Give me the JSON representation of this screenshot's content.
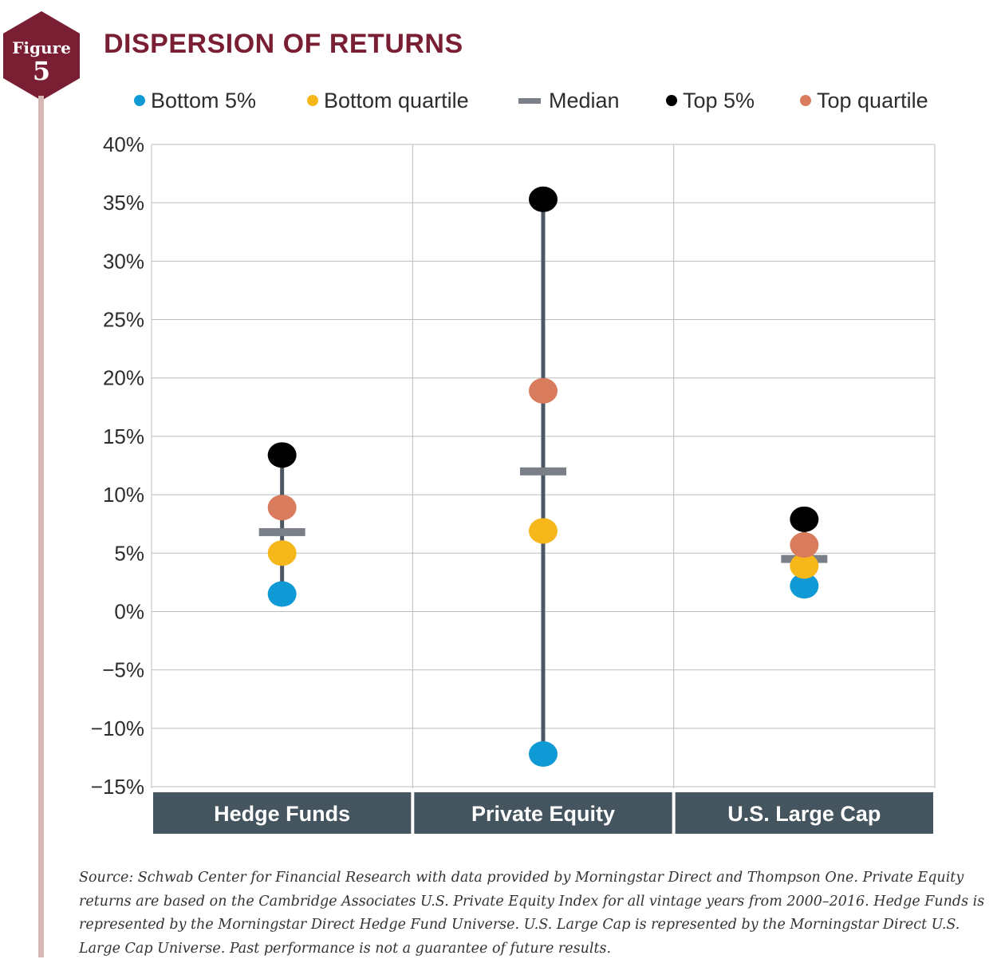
{
  "figure_badge": {
    "word": "Figure",
    "number": "5",
    "color": "#7a1f33"
  },
  "chart_data": {
    "type": "scatter",
    "title": "DISPERSION OF RETURNS",
    "xlabel": "",
    "ylabel": "",
    "categories": [
      "Hedge Funds",
      "Private Equity",
      "U.S. Large Cap"
    ],
    "ylim": [
      -15,
      40
    ],
    "yticks": [
      40,
      35,
      30,
      25,
      20,
      15,
      10,
      5,
      0,
      -5,
      -10,
      -15
    ],
    "ytick_labels": [
      "40%",
      "35%",
      "30%",
      "25%",
      "20%",
      "15%",
      "10%",
      "5%",
      "0%",
      "−5%",
      "−10%",
      "−15%"
    ],
    "grid": true,
    "legend_position": "top",
    "series": [
      {
        "name": "Bottom 5%",
        "marker": "dot",
        "color": "#0f9ad6",
        "values": [
          1.5,
          -12.2,
          2.2
        ]
      },
      {
        "name": "Bottom quartile",
        "marker": "dot",
        "color": "#f5b71a",
        "values": [
          5.0,
          6.9,
          3.9
        ]
      },
      {
        "name": "Median",
        "marker": "bar",
        "color": "#7b7f88",
        "values": [
          6.8,
          12.0,
          4.5
        ]
      },
      {
        "name": "Top 5%",
        "marker": "dot",
        "color": "#000000",
        "values": [
          13.4,
          35.3,
          7.9
        ]
      },
      {
        "name": "Top quartile",
        "marker": "dot",
        "color": "#d97b5d",
        "values": [
          8.9,
          18.9,
          5.7
        ]
      }
    ],
    "colors": {
      "range_line": "#4b5763",
      "category_band": "#45555f",
      "grid": "#b9bec3"
    }
  },
  "source_note": "Source: Schwab Center for Financial Research with data provided by Morningstar Direct and Thompson One. Private Equity returns are based on the Cambridge Associates U.S. Private Equity Index for all vintage years from 2000–2016. Hedge Funds is represented by the Morningstar Direct Hedge Fund Universe. U.S. Large Cap is represented by the Morningstar Direct U.S. Large Cap Universe. Past performance is not a guarantee of future results."
}
